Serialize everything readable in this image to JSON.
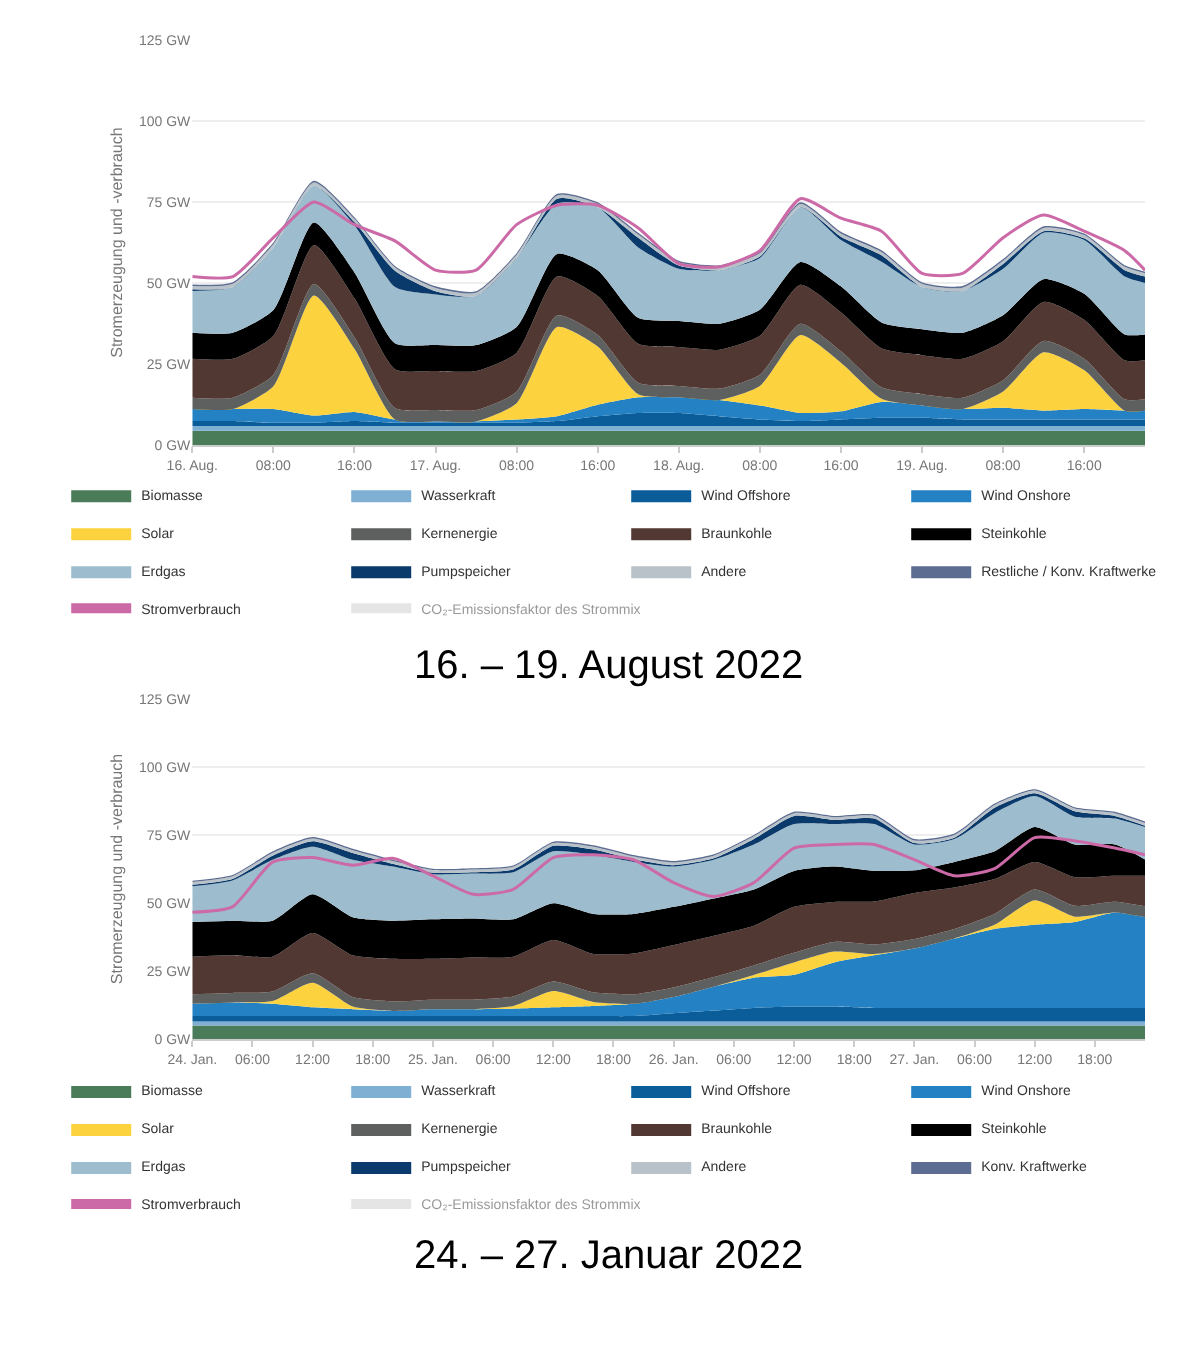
{
  "chart_data": [
    {
      "type": "area",
      "stacked": true,
      "title": "16. – 19. August 2022",
      "ylabel": "Stromerzeugung und -verbrauch",
      "grid": "y",
      "legend": "bottom",
      "x": [
        "2022-08-16T00:00",
        "2022-08-16T04:00",
        "2022-08-16T08:00",
        "2022-08-16T12:00",
        "2022-08-16T16:00",
        "2022-08-16T20:00",
        "2022-08-17T00:00",
        "2022-08-17T04:00",
        "2022-08-17T08:00",
        "2022-08-17T12:00",
        "2022-08-17T16:00",
        "2022-08-17T20:00",
        "2022-08-18T00:00",
        "2022-08-18T04:00",
        "2022-08-18T08:00",
        "2022-08-18T12:00",
        "2022-08-18T16:00",
        "2022-08-18T20:00",
        "2022-08-19T00:00",
        "2022-08-19T04:00",
        "2022-08-19T08:00",
        "2022-08-19T12:00",
        "2022-08-19T16:00",
        "2022-08-19T20:00",
        "2022-08-19T22:00"
      ],
      "xlim": [
        "2022-08-16T00:00",
        "2022-08-19T22:00"
      ],
      "xticks": [
        {
          "value": "2022-08-16T00:00",
          "label": "16. Aug."
        },
        {
          "value": "2022-08-16T08:00",
          "label": "08:00"
        },
        {
          "value": "2022-08-16T16:00",
          "label": "16:00"
        },
        {
          "value": "2022-08-17T00:00",
          "label": "17. Aug."
        },
        {
          "value": "2022-08-17T08:00",
          "label": "08:00"
        },
        {
          "value": "2022-08-17T16:00",
          "label": "16:00"
        },
        {
          "value": "2022-08-18T00:00",
          "label": "18. Aug."
        },
        {
          "value": "2022-08-18T08:00",
          "label": "08:00"
        },
        {
          "value": "2022-08-18T16:00",
          "label": "16:00"
        },
        {
          "value": "2022-08-19T00:00",
          "label": "19. Aug."
        },
        {
          "value": "2022-08-19T08:00",
          "label": "08:00"
        },
        {
          "value": "2022-08-19T16:00",
          "label": "16:00"
        }
      ],
      "ylim": [
        0,
        125
      ],
      "yticks": [
        {
          "value": 0,
          "label": "0 GW"
        },
        {
          "value": 25,
          "label": "25 GW"
        },
        {
          "value": 50,
          "label": "50 GW"
        },
        {
          "value": 75,
          "label": "75 GW"
        },
        {
          "value": 100,
          "label": "100 GW"
        },
        {
          "value": 125,
          "label": "125 GW"
        }
      ],
      "series": [
        {
          "name": "Biomasse",
          "color": "#4a7c59",
          "values": [
            4.5,
            4.5,
            4.5,
            4.5,
            4.5,
            4.5,
            4.5,
            4.5,
            4.5,
            4.5,
            4.5,
            4.5,
            4.5,
            4.5,
            4.5,
            4.5,
            4.5,
            4.5,
            4.5,
            4.5,
            4.5,
            4.5,
            4.5,
            4.5,
            4.5
          ]
        },
        {
          "name": "Wasserkraft",
          "color": "#7fb0d4",
          "values": [
            1.5,
            1.5,
            1.5,
            1.5,
            1.5,
            1.5,
            1.5,
            1.5,
            1.5,
            1.5,
            1.5,
            1.5,
            1.5,
            1.5,
            1.5,
            1.5,
            1.5,
            1.5,
            1.5,
            1.5,
            1.5,
            1.5,
            1.5,
            1.5,
            1.5
          ]
        },
        {
          "name": "Wind Offshore",
          "color": "#0a5d99",
          "values": [
            1.5,
            1.5,
            1,
            1,
            1.5,
            1,
            1,
            1,
            1,
            1.5,
            3,
            4,
            4,
            3,
            2,
            1.5,
            2,
            2.5,
            2.5,
            2,
            2,
            2,
            2,
            2,
            2
          ]
        },
        {
          "name": "Wind Onshore",
          "color": "#2381c4",
          "values": [
            3.7,
            3.7,
            4.2,
            2.2,
            2.8,
            1,
            0.4,
            0.4,
            1,
            1.5,
            3.5,
            4.8,
            4.8,
            5,
            4.3,
            2.5,
            2.5,
            4.9,
            3.8,
            3.2,
            3.6,
            2.7,
            3.2,
            2.7,
            2.7
          ]
        },
        {
          "name": "Solar",
          "color": "#fcd33e",
          "values": [
            0,
            0,
            7,
            37,
            19.5,
            0,
            0,
            0,
            5,
            27.5,
            18,
            1,
            0,
            0,
            6,
            24,
            15,
            1,
            0,
            0,
            5,
            18,
            12,
            0,
            0
          ]
        },
        {
          "name": "Kernenergie",
          "color": "#5d605e",
          "values": [
            3.5,
            3.5,
            3.5,
            3.5,
            3.5,
            3.5,
            3.5,
            3.5,
            3.5,
            3.5,
            3.5,
            3.5,
            3.5,
            3.5,
            3.5,
            3.5,
            3.5,
            3.5,
            3.5,
            3.5,
            3.5,
            3.5,
            3.5,
            3.5,
            3.5
          ]
        },
        {
          "name": "Braunkohle",
          "color": "#523833",
          "values": [
            12,
            12,
            12,
            12,
            12,
            12,
            12,
            12,
            12,
            12,
            12,
            12,
            12,
            12,
            12,
            12,
            12,
            12,
            12,
            12,
            12,
            12,
            12,
            12,
            12
          ]
        },
        {
          "name": "Steinkohle",
          "color": "#000000",
          "values": [
            8,
            8,
            8,
            7,
            8,
            8,
            8,
            8,
            8,
            7,
            8,
            8,
            8,
            8,
            8,
            7,
            8,
            8,
            8,
            8,
            8,
            7,
            8,
            8,
            8
          ]
        },
        {
          "name": "Erdgas",
          "color": "#9dbccd",
          "values": [
            12.9,
            14.1,
            19.3,
            11.3,
            14.5,
            17.3,
            15.6,
            15.1,
            21.2,
            15.5,
            19.4,
            21.7,
            16.1,
            16.5,
            15.9,
            16.9,
            14.3,
            18.7,
            13,
            12.9,
            14.3,
            14.3,
            16.6,
            17.8,
            15.8
          ]
        },
        {
          "name": "Pumpspeicher",
          "color": "#0a3a6b",
          "values": [
            0.5,
            0,
            0,
            0,
            1,
            5,
            1,
            0,
            0,
            1.5,
            0,
            3,
            1,
            0,
            0.5,
            0,
            1,
            2,
            0,
            0,
            1.5,
            0.5,
            0.5,
            2,
            2
          ]
        },
        {
          "name": "Andere",
          "color": "#b8c2c8",
          "values": [
            1,
            1,
            1,
            1,
            1,
            1,
            1,
            1,
            1,
            1,
            1,
            1,
            1,
            1,
            1,
            1,
            1,
            1,
            1,
            1,
            1,
            1,
            1,
            1,
            1
          ]
        },
        {
          "name": "Restliche / Konv. Kraftwerke",
          "color": "#5d6d91",
          "values": [
            0.5,
            0.5,
            0.5,
            0.5,
            0.5,
            0.5,
            0.5,
            0.5,
            0.5,
            0.5,
            0.5,
            0.5,
            0.5,
            0.5,
            0.5,
            0.5,
            0.5,
            0.5,
            0.5,
            0.5,
            0.5,
            0.5,
            0.5,
            0.5,
            0.5
          ]
        },
        {
          "name": "Stromverbrauch",
          "type": "line",
          "color": "#cc6aa8",
          "values": [
            52,
            52,
            64,
            75,
            68,
            63,
            54,
            54,
            68,
            74,
            74,
            67,
            56,
            55,
            60,
            76,
            70,
            66,
            53,
            53,
            64,
            71,
            66,
            60,
            54
          ]
        },
        {
          "name": "CO₂-Emissionsfaktor des Strommix",
          "type": "line",
          "color": "#cccccc",
          "values": [
            null,
            null,
            null,
            null,
            null,
            null,
            null,
            null,
            null,
            null,
            null,
            null,
            null,
            null,
            null,
            null,
            null,
            null,
            null,
            null,
            null,
            null,
            null,
            null,
            null
          ]
        }
      ]
    },
    {
      "type": "area",
      "stacked": true,
      "title": "24. – 27. Januar 2022",
      "ylabel": "Stromerzeugung und -verbrauch",
      "grid": "y",
      "legend": "bottom",
      "x": [
        "2022-01-24T00:00",
        "2022-01-24T04:00",
        "2022-01-24T08:00",
        "2022-01-24T12:00",
        "2022-01-24T16:00",
        "2022-01-24T20:00",
        "2022-01-25T00:00",
        "2022-01-25T04:00",
        "2022-01-25T08:00",
        "2022-01-25T12:00",
        "2022-01-25T16:00",
        "2022-01-25T20:00",
        "2022-01-26T00:00",
        "2022-01-26T04:00",
        "2022-01-26T08:00",
        "2022-01-26T12:00",
        "2022-01-26T16:00",
        "2022-01-26T20:00",
        "2022-01-27T00:00",
        "2022-01-27T04:00",
        "2022-01-27T08:00",
        "2022-01-27T12:00",
        "2022-01-27T16:00",
        "2022-01-27T20:00",
        "2022-01-27T23:00"
      ],
      "xlim": [
        "2022-01-24T00:00",
        "2022-01-27T23:00"
      ],
      "xticks": [
        {
          "value": "2022-01-24T00:00",
          "label": "24. Jan."
        },
        {
          "value": "2022-01-24T06:00",
          "label": "06:00"
        },
        {
          "value": "2022-01-24T12:00",
          "label": "12:00"
        },
        {
          "value": "2022-01-24T18:00",
          "label": "18:00"
        },
        {
          "value": "2022-01-25T00:00",
          "label": "25. Jan."
        },
        {
          "value": "2022-01-25T06:00",
          "label": "06:00"
        },
        {
          "value": "2022-01-25T12:00",
          "label": "12:00"
        },
        {
          "value": "2022-01-25T18:00",
          "label": "18:00"
        },
        {
          "value": "2022-01-26T00:00",
          "label": "26. Jan."
        },
        {
          "value": "2022-01-26T06:00",
          "label": "06:00"
        },
        {
          "value": "2022-01-26T12:00",
          "label": "12:00"
        },
        {
          "value": "2022-01-26T18:00",
          "label": "18:00"
        },
        {
          "value": "2022-01-27T00:00",
          "label": "27. Jan."
        },
        {
          "value": "2022-01-27T06:00",
          "label": "06:00"
        },
        {
          "value": "2022-01-27T12:00",
          "label": "12:00"
        },
        {
          "value": "2022-01-27T18:00",
          "label": "18:00"
        }
      ],
      "ylim": [
        0,
        125
      ],
      "yticks": [
        {
          "value": 0,
          "label": "0 GW"
        },
        {
          "value": 25,
          "label": "25 GW"
        },
        {
          "value": 50,
          "label": "50 GW"
        },
        {
          "value": 75,
          "label": "75 GW"
        },
        {
          "value": 100,
          "label": "100 GW"
        },
        {
          "value": 125,
          "label": "125 GW"
        }
      ],
      "series": [
        {
          "name": "Biomasse",
          "color": "#4a7c59",
          "values": [
            5,
            5,
            5,
            5,
            5,
            5,
            5,
            5,
            5,
            5,
            5,
            5,
            5,
            5,
            5,
            5,
            5,
            5,
            5,
            5,
            5,
            5,
            5,
            5,
            5
          ]
        },
        {
          "name": "Wasserkraft",
          "color": "#7fb0d4",
          "values": [
            1.5,
            1.5,
            1.5,
            1.5,
            1.5,
            1.5,
            1.5,
            1.5,
            1.5,
            1.5,
            1.5,
            1.5,
            1.5,
            1.5,
            1.5,
            1.5,
            1.5,
            1.5,
            1.5,
            1.5,
            1.5,
            1.5,
            1.5,
            1.5,
            1.5
          ]
        },
        {
          "name": "Wind Offshore",
          "color": "#0a5d99",
          "values": [
            2,
            2,
            2,
            2,
            2,
            2,
            2,
            2,
            2,
            2,
            2,
            2,
            3,
            4,
            5,
            5.5,
            5.5,
            5,
            5,
            5,
            5,
            5,
            5,
            5,
            5
          ]
        },
        {
          "name": "Wind Onshore",
          "color": "#2381c4",
          "values": [
            4.5,
            5,
            4.5,
            3.2,
            2.5,
            1.9,
            2.5,
            2.5,
            2.7,
            3.2,
            3.7,
            4.5,
            6,
            8.8,
            11.1,
            11.7,
            16.2,
            19.3,
            21.8,
            25.5,
            29,
            30.5,
            31.5,
            35,
            33.3
          ]
        },
        {
          "name": "Solar",
          "color": "#fcd33e",
          "values": [
            0,
            0,
            1,
            9,
            1,
            0,
            0,
            0,
            1,
            6,
            1.5,
            0,
            0,
            0,
            1,
            4.5,
            4,
            0.5,
            0,
            0,
            1.5,
            9,
            2,
            0,
            0
          ]
        },
        {
          "name": "Kernenergie",
          "color": "#5d605e",
          "values": [
            3.5,
            3.5,
            3.5,
            3.5,
            3.5,
            3.5,
            3.5,
            3.5,
            3.5,
            3.5,
            3.5,
            3.5,
            3.5,
            3.5,
            3.5,
            3.5,
            3.5,
            3.5,
            3.5,
            3.5,
            4,
            4,
            4,
            4,
            4
          ]
        },
        {
          "name": "Braunkohle",
          "color": "#523833",
          "values": [
            13.8,
            13.8,
            12.8,
            14.8,
            15.3,
            15.6,
            15,
            15.5,
            14.6,
            15.2,
            14.1,
            15,
            15.6,
            15.2,
            14.6,
            16.9,
            14.7,
            15.8,
            16.9,
            15.2,
            12.8,
            10.1,
            10.5,
            9.5,
            11.2
          ]
        },
        {
          "name": "Steinkohle",
          "color": "#000000",
          "values": [
            12.7,
            12.7,
            13.2,
            14.2,
            14,
            14,
            14.5,
            14.3,
            13.7,
            13.5,
            14.7,
            14.5,
            14,
            13.7,
            13.3,
            13.2,
            13,
            11.2,
            8.3,
            9.4,
            10.2,
            12.8,
            12,
            11.5,
            6
          ]
        },
        {
          "name": "Erdgas",
          "color": "#9dbccd",
          "values": [
            13.2,
            14.8,
            22.4,
            17.5,
            21.1,
            19.9,
            16.6,
            16.5,
            17.3,
            19.1,
            21.7,
            19.1,
            14.8,
            14.2,
            16.5,
            17.2,
            15.6,
            17.2,
            9.5,
            8.4,
            14,
            11.4,
            10.2,
            9.5,
            11.9
          ]
        },
        {
          "name": "Pumpspeicher",
          "color": "#0a3a6b",
          "values": [
            0.5,
            0.5,
            1.5,
            2,
            2.5,
            1,
            0.5,
            0.5,
            1,
            2,
            2,
            1,
            0.5,
            0.5,
            2,
            3,
            1.5,
            2,
            0.5,
            0.5,
            2,
            1,
            2,
            1,
            0.5
          ]
        },
        {
          "name": "Andere",
          "color": "#b8c2c8",
          "values": [
            1,
            1,
            1,
            1,
            1,
            1,
            1,
            1,
            1,
            1,
            1,
            1,
            1,
            1,
            1,
            1,
            1,
            1,
            1,
            1,
            1,
            1,
            1,
            1,
            1
          ]
        },
        {
          "name": "Konv. Kraftwerke",
          "color": "#5d6d91",
          "values": [
            0.5,
            0.5,
            0.5,
            0.5,
            0.5,
            0.5,
            0.5,
            0.5,
            0.5,
            0.5,
            0.5,
            0.5,
            0.5,
            0.5,
            0.5,
            0.5,
            0.5,
            0.5,
            0.5,
            0.5,
            0.5,
            0.5,
            0.5,
            0.5,
            0.5
          ]
        },
        {
          "name": "Stromverbrauch",
          "type": "line",
          "color": "#cc6aa8",
          "values": [
            46.6,
            48.6,
            65,
            66.7,
            63.9,
            66.4,
            60,
            53.2,
            55,
            66.7,
            67.7,
            65.9,
            57.5,
            52.4,
            57.5,
            70.2,
            71.5,
            71.5,
            65.9,
            60,
            62.6,
            74,
            72.8,
            70.2,
            67.7
          ]
        },
        {
          "name": "CO₂-Emissionsfaktor des Strommix",
          "type": "line",
          "color": "#cccccc",
          "values": [
            null,
            null,
            null,
            null,
            null,
            null,
            null,
            null,
            null,
            null,
            null,
            null,
            null,
            null,
            null,
            null,
            null,
            null,
            null,
            null,
            null,
            null,
            null,
            null,
            null
          ]
        }
      ]
    }
  ]
}
